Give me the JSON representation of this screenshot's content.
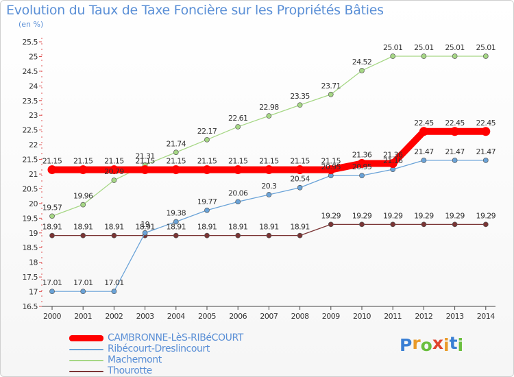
{
  "header": {
    "title": "Evolution du Taux de Taxe Foncière sur les Propriétés Bâties",
    "subtitle": "(en %)"
  },
  "logo": {
    "text": "Proxiti"
  },
  "chart_data": {
    "type": "line",
    "title": "Evolution du Taux de Taxe Foncière sur les Propriétés Bâties",
    "ylabel": "(en %)",
    "xlabel": "",
    "x": [
      "2000",
      "2001",
      "2002",
      "2003",
      "2004",
      "2005",
      "2006",
      "2007",
      "2008",
      "2009",
      "2010",
      "2011",
      "2012",
      "2013",
      "2014"
    ],
    "ylim": [
      16.5,
      25.5
    ],
    "yticks": [
      "16.5",
      "17",
      "17.5",
      "18",
      "18.5",
      "19",
      "19.5",
      "20",
      "20.5",
      "21",
      "21.5",
      "22",
      "22.5",
      "23",
      "23.5",
      "24",
      "24.5",
      "25",
      "25.5"
    ],
    "grid": false,
    "legend_placement": "bottom-left",
    "series": [
      {
        "name": "CAMBRONNE-LèS-RIBéCOURT",
        "color": "#ff0000",
        "values": [
          21.15,
          21.15,
          21.15,
          21.15,
          21.15,
          21.15,
          21.15,
          21.15,
          21.15,
          21.15,
          21.36,
          21.36,
          22.45,
          22.45,
          22.45
        ],
        "labels": [
          "21.15",
          "21.15",
          "21.15",
          "21.15",
          "21.15",
          "21.15",
          "21.15",
          "21.15",
          "21.15",
          "21.15",
          "21.36",
          "21.36",
          "22.45",
          "22.45",
          "22.45"
        ]
      },
      {
        "name": "Ribécourt-Dreslincourt",
        "color": "#6aa3d8",
        "values": [
          17.01,
          17.01,
          17.01,
          19,
          19.38,
          19.77,
          20.06,
          20.3,
          20.54,
          20.95,
          20.95,
          21.16,
          21.47,
          21.47,
          21.47
        ],
        "labels": [
          "17.01",
          "17.01",
          "17.01",
          "19",
          "19.38",
          "19.77",
          "20.06",
          "20.3",
          "20.54",
          "20.95",
          "20.95",
          "21.16",
          "21.47",
          "21.47",
          "21.47"
        ]
      },
      {
        "name": "Machemont",
        "color": "#a6d785",
        "values": [
          19.57,
          19.96,
          20.79,
          21.31,
          21.74,
          22.17,
          22.61,
          22.98,
          23.35,
          23.71,
          24.52,
          25.01,
          25.01,
          25.01,
          25.01
        ],
        "labels": [
          "19.57",
          "19.96",
          "20.79",
          "21.31",
          "21.74",
          "22.17",
          "22.61",
          "22.98",
          "23.35",
          "23.71",
          "24.52",
          "25.01",
          "25.01",
          "25.01",
          "25.01"
        ]
      },
      {
        "name": "Thourotte",
        "color": "#7b3535",
        "values": [
          18.91,
          18.91,
          18.91,
          18.91,
          18.91,
          18.91,
          18.91,
          18.91,
          18.91,
          19.29,
          19.29,
          19.29,
          19.29,
          19.29,
          19.29
        ],
        "labels": [
          "18.91",
          "18.91",
          "18.91",
          "18.91",
          "18.91",
          "18.91",
          "18.91",
          "18.91",
          "18.91",
          "19.29",
          "19.29",
          "19.29",
          "19.29",
          "19.29",
          "19.29"
        ]
      }
    ]
  }
}
